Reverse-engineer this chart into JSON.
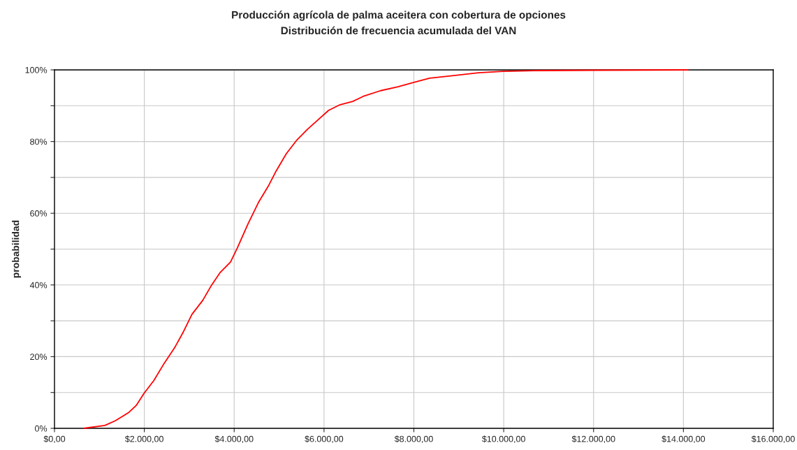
{
  "chart_data": {
    "type": "line",
    "title": "Producción agrícola de palma aceitera con cobertura de opciones",
    "subtitle": "Distribución de frecuencia acumulada del VAN",
    "ylabel": "probabilidad",
    "x": [
      650,
      1120,
      1350,
      1510,
      1660,
      1820,
      1990,
      2210,
      2440,
      2670,
      2860,
      3060,
      3300,
      3480,
      3690,
      3920,
      4070,
      4310,
      4540,
      4770,
      4930,
      5160,
      5400,
      5630,
      5860,
      6100,
      6360,
      6640,
      6870,
      7260,
      7650,
      8000,
      8350,
      8890,
      9440,
      9980,
      10760,
      12000,
      14100
    ],
    "series": [
      {
        "color": "#ff0000",
        "values": [
          0,
          0.8,
          2.1,
          3.3,
          4.5,
          6.4,
          9.7,
          13.3,
          18.1,
          22.4,
          26.7,
          31.8,
          35.7,
          39.6,
          43.5,
          46.4,
          50.3,
          57.1,
          63.0,
          67.8,
          71.7,
          76.6,
          80.5,
          83.4,
          86.0,
          88.7,
          90.3,
          91.2,
          92.6,
          94.2,
          95.3,
          96.5,
          97.7,
          98.4,
          99.2,
          99.6,
          99.8,
          99.9,
          100
        ]
      }
    ],
    "xlim": [
      0,
      16000
    ],
    "ylim": [
      0,
      100
    ],
    "xticks": [
      {
        "value": 0,
        "label": "$0,00"
      },
      {
        "value": 2000,
        "label": "$2.000,00"
      },
      {
        "value": 4000,
        "label": "$4.000,00"
      },
      {
        "value": 6000,
        "label": "$6.000,00"
      },
      {
        "value": 8000,
        "label": "$8.000,00"
      },
      {
        "value": 10000,
        "label": "$10.000,00"
      },
      {
        "value": 12000,
        "label": "$12.000,00"
      },
      {
        "value": 14000,
        "label": "$14.000,00"
      },
      {
        "value": 16000,
        "label": "$16.000,00"
      }
    ],
    "yticks": [
      {
        "value": 0,
        "label": "0%"
      },
      {
        "value": 10,
        "label": null
      },
      {
        "value": 20,
        "label": "20%"
      },
      {
        "value": 30,
        "label": null
      },
      {
        "value": 40,
        "label": "40%"
      },
      {
        "value": 50,
        "label": null
      },
      {
        "value": 60,
        "label": "60%"
      },
      {
        "value": 70,
        "label": null
      },
      {
        "value": 80,
        "label": "80%"
      },
      {
        "value": 90,
        "label": null
      },
      {
        "value": 100,
        "label": "100%"
      }
    ],
    "grid": true,
    "marker": "none",
    "line_style": "solid"
  }
}
